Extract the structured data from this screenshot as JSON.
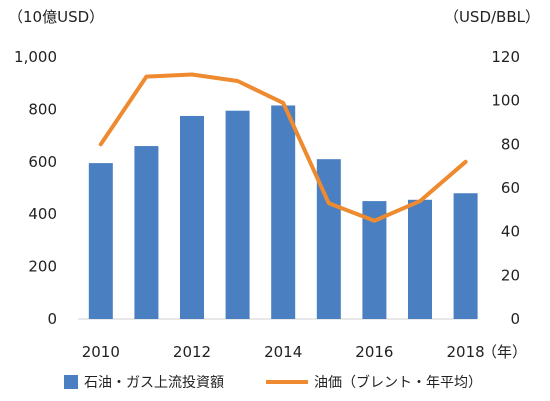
{
  "chart_data": {
    "type": "bar+line",
    "categories": [
      "2010",
      "2011",
      "2012",
      "2013",
      "2014",
      "2015",
      "2016",
      "2017",
      "2018"
    ],
    "x_tick_labels": [
      "2010",
      "2012",
      "2014",
      "2016",
      "2018"
    ],
    "left_axis": {
      "unit_label": "（10億USD）",
      "ylim": [
        0,
        1000
      ],
      "ticks": [
        "1,000",
        "800",
        "600",
        "400",
        "200",
        "0"
      ]
    },
    "right_axis": {
      "unit_label": "（USD/BBL）",
      "ylim": [
        0,
        120
      ],
      "ticks": [
        "120",
        "100",
        "80",
        "60",
        "40",
        "20",
        "0"
      ]
    },
    "x_unit_label": "（年）",
    "series": [
      {
        "name": "石油・ガス上流投資額",
        "kind": "bar",
        "axis": "left",
        "color": "#4a7fc1",
        "values": [
          595,
          660,
          775,
          795,
          815,
          610,
          450,
          455,
          480
        ]
      },
      {
        "name": "油価（ブレント・年平均）",
        "kind": "line",
        "axis": "right",
        "color": "#ee8a2f",
        "values": [
          80,
          111,
          112,
          109,
          99,
          53,
          45,
          54,
          72
        ]
      }
    ],
    "grid": false,
    "legend_position": "bottom"
  }
}
